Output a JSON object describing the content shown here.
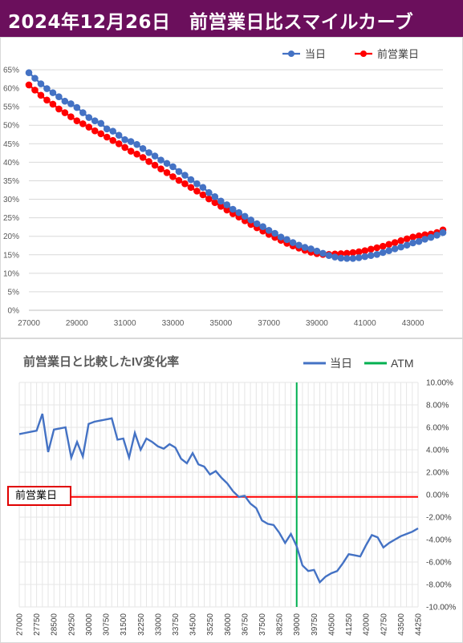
{
  "header": {
    "title": "2024年12月26日　前営業日比スマイルカーブ"
  },
  "colors": {
    "header_bg": "#6b0f5c",
    "today": "#4472c4",
    "prev": "#ff0000",
    "change_line": "#4472c4",
    "atm": "#00b050",
    "zero_line": "#ff0000"
  },
  "chart_data": [
    {
      "type": "line",
      "title": "",
      "xlabel": "",
      "ylabel": "",
      "xlim": [
        27000,
        44250
      ],
      "ylim": [
        0,
        65
      ],
      "x_ticks": [
        "27000",
        "29000",
        "31000",
        "33000",
        "35000",
        "37000",
        "39000",
        "41000",
        "43000"
      ],
      "y_ticks": [
        "0%",
        "5%",
        "10%",
        "15%",
        "20%",
        "25%",
        "30%",
        "35%",
        "40%",
        "45%",
        "50%",
        "55%",
        "60%",
        "65%"
      ],
      "grid": true,
      "legend": "top-right",
      "x": [
        27000,
        27250,
        27500,
        27750,
        28000,
        28250,
        28500,
        28750,
        29000,
        29250,
        29500,
        29750,
        30000,
        30250,
        30500,
        30750,
        31000,
        31250,
        31500,
        31750,
        32000,
        32250,
        32500,
        32750,
        33000,
        33250,
        33500,
        33750,
        34000,
        34250,
        34500,
        34750,
        35000,
        35250,
        35500,
        35750,
        36000,
        36250,
        36500,
        36750,
        37000,
        37250,
        37500,
        37750,
        38000,
        38250,
        38500,
        38750,
        39000,
        39250,
        39500,
        39750,
        40000,
        40250,
        40500,
        40750,
        41000,
        41250,
        41500,
        41750,
        42000,
        42250,
        42500,
        42750,
        43000,
        43250,
        43500,
        43750,
        44000,
        44250
      ],
      "series": [
        {
          "name": "当日",
          "values": [
            64.2,
            62.7,
            61.2,
            59.9,
            58.8,
            57.7,
            56.5,
            55.8,
            54.8,
            53.4,
            52.1,
            51.2,
            50.5,
            49.0,
            48.4,
            47.3,
            46.1,
            45.6,
            44.8,
            43.7,
            42.6,
            41.7,
            40.6,
            39.7,
            38.8,
            37.5,
            36.5,
            35.3,
            34.2,
            33.2,
            31.8,
            30.7,
            29.5,
            28.5,
            27.3,
            26.4,
            25.4,
            24.4,
            23.4,
            22.6,
            21.6,
            20.8,
            19.8,
            19.1,
            18.3,
            17.6,
            17.0,
            16.6,
            16.0,
            15.4,
            14.8,
            14.4,
            14.1,
            14.0,
            14.0,
            14.2,
            14.5,
            14.8,
            15.1,
            15.6,
            16.1,
            16.6,
            17.1,
            17.6,
            18.2,
            18.6,
            19.2,
            19.7,
            20.3,
            21.0
          ]
        },
        {
          "name": "前営業日",
          "values": [
            60.9,
            59.5,
            58.1,
            56.8,
            55.7,
            54.4,
            53.4,
            52.3,
            51.2,
            50.4,
            49.5,
            48.5,
            47.7,
            46.8,
            45.9,
            45.0,
            44.0,
            43.0,
            42.2,
            41.3,
            40.2,
            39.2,
            38.2,
            37.2,
            36.1,
            35.1,
            34.2,
            33.2,
            32.2,
            31.2,
            30.1,
            29.1,
            28.1,
            27.1,
            26.1,
            25.2,
            24.2,
            23.2,
            22.3,
            21.4,
            20.5,
            19.7,
            18.9,
            18.1,
            17.4,
            16.8,
            16.2,
            15.7,
            15.3,
            15.1,
            15.1,
            15.2,
            15.3,
            15.4,
            15.6,
            15.8,
            16.1,
            16.5,
            16.9,
            17.3,
            17.8,
            18.3,
            18.8,
            19.3,
            19.8,
            20.1,
            20.4,
            20.6,
            21.0,
            21.7
          ]
        }
      ]
    },
    {
      "type": "line",
      "title": "前営業日と比較したIV変化率",
      "xlabel": "",
      "ylabel": "",
      "xlim": [
        27000,
        44250
      ],
      "ylim": [
        -10,
        10
      ],
      "x_ticks": [
        "27000",
        "27250",
        "27500",
        "27750",
        "28000",
        "28250",
        "28500",
        "28750",
        "29000",
        "29250",
        "29500",
        "29750",
        "30000",
        "30250",
        "30500",
        "30750",
        "31000",
        "31250",
        "31500",
        "31750",
        "32000",
        "32250",
        "32500",
        "32750",
        "33000",
        "33250",
        "33500",
        "33750",
        "34000",
        "34250",
        "34500",
        "34750",
        "35000",
        "35250",
        "35500",
        "35750",
        "36000",
        "36250",
        "36500",
        "36750",
        "37000",
        "37250",
        "37500",
        "37750",
        "38000",
        "38250",
        "38500",
        "38750",
        "39000",
        "39250",
        "39500",
        "39750",
        "40000",
        "40250",
        "40500",
        "40750",
        "41000",
        "41250",
        "41500",
        "41750",
        "42000",
        "42250",
        "42500",
        "42750",
        "43000",
        "43250",
        "43500",
        "43750",
        "44000",
        "44250"
      ],
      "x_ticks_shown": [
        "27000",
        "27750",
        "28500",
        "29250",
        "30000",
        "30750",
        "31500",
        "32250",
        "33000",
        "33750",
        "34500",
        "35250",
        "36000",
        "36750",
        "37500",
        "38250",
        "39000",
        "39750",
        "40500",
        "41250",
        "42000",
        "42750",
        "43500",
        "44250"
      ],
      "y_ticks": [
        "-10.00%",
        "-8.00%",
        "-6.00%",
        "-4.00%",
        "-2.00%",
        "0.00%",
        "2.00%",
        "4.00%",
        "6.00%",
        "8.00%",
        "10.00%"
      ],
      "grid": true,
      "legend": "top-right",
      "atm": 39000,
      "zero_label": "前営業日",
      "series": [
        {
          "name": "当日",
          "values": [
            5.4,
            5.5,
            5.6,
            5.7,
            7.2,
            3.8,
            5.8,
            5.9,
            6.0,
            3.3,
            4.7,
            3.4,
            6.3,
            6.5,
            6.6,
            6.7,
            6.8,
            4.9,
            5.0,
            3.3,
            5.5,
            4.0,
            5.0,
            4.7,
            4.3,
            4.1,
            4.5,
            4.2,
            3.2,
            2.8,
            3.7,
            2.7,
            2.5,
            1.8,
            2.1,
            1.5,
            1.0,
            0.3,
            -0.2,
            -0.1,
            -0.8,
            -1.2,
            -2.3,
            -2.6,
            -2.7,
            -3.4,
            -4.3,
            -3.5,
            -4.6,
            -6.3,
            -6.8,
            -6.7,
            -7.8,
            -7.3,
            -7.0,
            -6.8,
            -6.1,
            -5.3,
            -5.4,
            -5.5,
            -4.5,
            -3.6,
            -3.8,
            -4.7,
            -4.3,
            -4.0,
            -3.7,
            -3.5,
            -3.3,
            -3.0
          ]
        },
        {
          "name": "ATM",
          "values": []
        }
      ]
    }
  ]
}
